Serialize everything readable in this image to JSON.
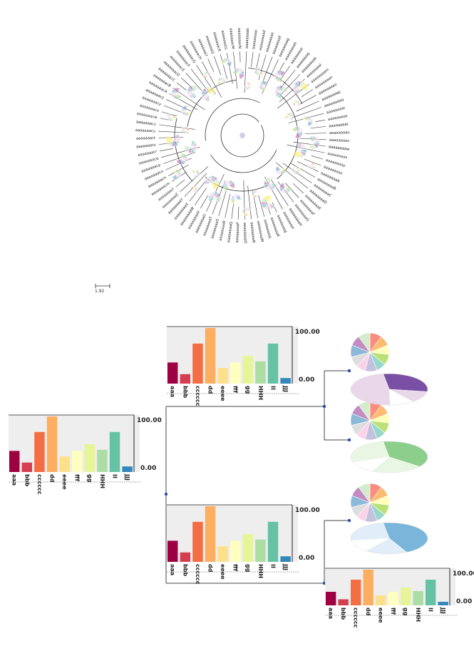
{
  "circular_tree": {
    "scale_label": "1.92",
    "leaves": [
      "aaaaaaaab",
      "aaaaaaaac",
      "aaaaaaaad",
      "aaaaaaaae",
      "aaaaaaaaf",
      "aaaaaaaag",
      "aaaaaaaah",
      "aaaaaaaai",
      "aaaaaaaaj",
      "aaaaaaaak",
      "aaaaaaaal",
      "aaaaaaaam",
      "aaaaaaaan",
      "aaaaaaaao",
      "aaaaaaaap",
      "aaaaaaaaq",
      "aaaaaaaar",
      "aaaaaaaas",
      "aaaaaaaat",
      "aaaaaaaau",
      "aaaaaaaav",
      "aaaaaaaaw",
      "aaaaaaaax",
      "aaaaaaaay",
      "aaaaaaaaz",
      "aaaaaaaaA",
      "aaaaaaaaB",
      "aaaaaaaaC",
      "aaaaaaaaD",
      "aaaaaaaaE",
      "aaaaaaaaF",
      "aaaaaaaaG",
      "aaaaaaaaH",
      "aaaaaaaaI",
      "aaaaaaaaJ",
      "aaaaaaaaK",
      "aaaaaaaaL",
      "aaaaaaaaM",
      "aaaaaaaaN",
      "aaaaaaaaO",
      "aaaaaaaaP",
      "aaaaaaaaQ",
      "aaaaaaaaR",
      "aaaaaaaaS",
      "aaaaaaaaT",
      "aaaaaaaaU",
      "aaaaaaaaV",
      "aaaaaaaaW",
      "aaaaaaaaX",
      "aaaaaaaaY",
      "aaaaaaaaZ",
      "aaaaaaacl",
      "aaaaaaacm",
      "aaaaaaacn",
      "aaaaaaaco",
      "aaaaaaacp",
      "aaaaaaacq",
      "aaaaaaacr",
      "aaaaaaacs",
      "aaaaaaact",
      "aaaaaaacu",
      "aaaaaaacv",
      "aaaaaaacw",
      "aaaaaaacx",
      "aaaaaaacy",
      "aaaaaaacz",
      "aaaaaaacA",
      "aaaaaaacB",
      "aaaaaaacC",
      "aaaaaaacD",
      "aaaaaaacE",
      "aaaaaaacF",
      "aaaaaaacG",
      "aaaaaaacH",
      "aaaaaaacI",
      "aaaaaaacJ",
      "aaaaaaacK",
      "aaaaaaacL",
      "aaaaaaacM",
      "aaaaaaacN"
    ]
  },
  "bar_panel": {
    "max_label": "100.00",
    "min_label": "0.00",
    "categories": [
      "aaa",
      "bbb",
      "cccccc",
      "dd",
      "eeee",
      "fff",
      "gg",
      "HHH",
      "II",
      "JJJ"
    ],
    "values": [
      38,
      17,
      72,
      100,
      28,
      38,
      50,
      40,
      72,
      10
    ],
    "colors": [
      "#9e0142",
      "#d53e4f",
      "#f46d43",
      "#fdae61",
      "#fee08b",
      "#ffffbf",
      "#e6f598",
      "#abdda4",
      "#66c2a5",
      "#3288bd"
    ]
  },
  "pie_colors": [
    "#fb8072",
    "#fdb462",
    "#ffffb3",
    "#b3de69",
    "#8dd3c7",
    "#bebada",
    "#fccde5",
    "#d9d9d9",
    "#80b1d3",
    "#bc80bd",
    "#ccebc5",
    "#ffed6f"
  ],
  "pie_fractions": [
    0.1,
    0.09,
    0.08,
    0.09,
    0.08,
    0.1,
    0.08,
    0.09,
    0.1,
    0.09,
    0.1
  ],
  "ellipse_pies": [
    {
      "color": "#6a3d9a",
      "light": "#e7d4e8",
      "fractions": [
        0.3,
        0.12,
        0.1,
        0.48
      ]
    },
    {
      "color": "#7fc97f",
      "light": "#e5f5e0",
      "fractions": [
        0.38,
        0.22,
        0.12,
        0.28
      ]
    },
    {
      "color": "#6baed6",
      "light": "#deebf7",
      "fractions": [
        0.45,
        0.18,
        0.12,
        0.25
      ]
    }
  ]
}
